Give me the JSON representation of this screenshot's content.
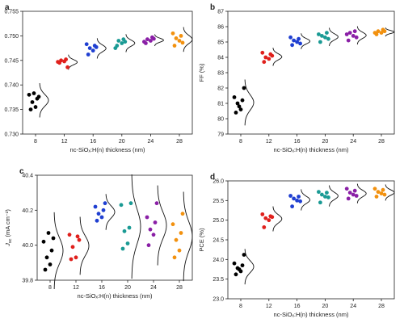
{
  "chart_data": [
    {
      "type": "scatter",
      "panel_label": "a",
      "xlabel": "nc-SiOₓ:H(n) thickness (nm)",
      "ylabel": "V",
      "ylabel_sub": "oc",
      "ylabel_unit": " (V)",
      "ylim": [
        0.73,
        0.755
      ],
      "yticks": [
        "0.730",
        "0.735",
        "0.740",
        "0.745",
        "0.750",
        "0.755"
      ],
      "categories": [
        "8",
        "12",
        "16",
        "20",
        "24",
        "28"
      ],
      "colors": [
        "#000000",
        "#e0201c",
        "#1f3fd1",
        "#1a9a94",
        "#8a1fa6",
        "#f2910f"
      ],
      "points": [
        [
          0.735,
          0.7355,
          0.7365,
          0.7372,
          0.738,
          0.7376,
          0.7383
        ],
        [
          0.7445,
          0.7448,
          0.745,
          0.7452,
          0.7447,
          0.7436
        ],
        [
          0.7462,
          0.747,
          0.7475,
          0.748,
          0.7483,
          0.7477
        ],
        [
          0.748,
          0.7485,
          0.749,
          0.7493,
          0.7475,
          0.7488
        ],
        [
          0.7485,
          0.749,
          0.7493,
          0.7497,
          0.7488,
          0.7494
        ],
        [
          0.748,
          0.749,
          0.7495,
          0.75,
          0.7505,
          0.7486
        ]
      ]
    },
    {
      "type": "scatter",
      "panel_label": "b",
      "xlabel": "nc-SiOₓ:H(n) thickness (nm)",
      "ylabel": "FF (%)",
      "ylabel_sub": "",
      "ylabel_unit": "",
      "ylim": [
        79,
        87
      ],
      "yticks": [
        "79",
        "80",
        "81",
        "82",
        "83",
        "84",
        "85",
        "86",
        "87"
      ],
      "categories": [
        "8",
        "12",
        "16",
        "20",
        "24",
        "28"
      ],
      "colors": [
        "#000000",
        "#e0201c",
        "#1f3fd1",
        "#1a9a94",
        "#8a1fa6",
        "#f2910f"
      ],
      "points": [
        [
          80.4,
          80.6,
          81.0,
          81.2,
          81.4,
          82.0,
          80.8
        ],
        [
          83.7,
          83.9,
          84.0,
          84.2,
          84.3,
          84.1
        ],
        [
          84.8,
          85.0,
          85.1,
          85.2,
          85.3,
          84.9
        ],
        [
          85.0,
          85.3,
          85.4,
          85.6,
          85.5,
          85.2
        ],
        [
          85.1,
          85.4,
          85.6,
          85.7,
          85.5,
          85.3
        ],
        [
          85.5,
          85.6,
          85.7,
          85.8,
          85.6,
          85.7
        ]
      ]
    },
    {
      "type": "scatter",
      "panel_label": "c",
      "xlabel": "nc-SiOₓ:H(n) thickness (nm)",
      "ylabel": "J",
      "ylabel_sub": "sc",
      "ylabel_unit": " (mA cm⁻²)",
      "ylim": [
        39.8,
        40.4
      ],
      "yticks": [
        "39.8",
        "40.0",
        "40.2",
        "40.4"
      ],
      "categories": [
        "8",
        "12",
        "16",
        "20",
        "24",
        "28"
      ],
      "colors": [
        "#000000",
        "#e0201c",
        "#1f3fd1",
        "#1a9a94",
        "#8a1fa6",
        "#f2910f"
      ],
      "points": [
        [
          39.86,
          39.89,
          39.93,
          39.97,
          40.02,
          40.04,
          40.07
        ],
        [
          39.92,
          39.93,
          39.99,
          40.05,
          40.06,
          40.03
        ],
        [
          40.14,
          40.16,
          40.18,
          40.2,
          40.22,
          40.24
        ],
        [
          39.98,
          40.01,
          40.08,
          40.1,
          40.23,
          40.24
        ],
        [
          40.0,
          40.06,
          40.09,
          40.13,
          40.16,
          40.24
        ],
        [
          39.93,
          39.97,
          40.03,
          40.07,
          40.12,
          40.18
        ]
      ]
    },
    {
      "type": "scatter",
      "panel_label": "d",
      "xlabel": "nc-SiOₓ:H(n) thickness (nm)",
      "ylabel": "PCE (%)",
      "ylabel_sub": "",
      "ylabel_unit": "",
      "ylim": [
        23.0,
        26.0
      ],
      "yticks": [
        "23.0",
        "23.5",
        "24.0",
        "24.5",
        "25.0",
        "25.5",
        "26.0"
      ],
      "categories": [
        "8",
        "12",
        "16",
        "20",
        "24",
        "28"
      ],
      "colors": [
        "#000000",
        "#e0201c",
        "#1f3fd1",
        "#1a9a94",
        "#8a1fa6",
        "#f2910f"
      ],
      "points": [
        [
          23.62,
          23.7,
          23.78,
          23.85,
          23.9,
          24.12,
          23.75
        ],
        [
          24.82,
          25.0,
          25.05,
          25.1,
          25.15,
          25.08
        ],
        [
          25.35,
          25.5,
          25.55,
          25.6,
          25.62,
          25.48
        ],
        [
          25.45,
          25.6,
          25.65,
          25.7,
          25.72,
          25.58
        ],
        [
          25.55,
          25.65,
          25.7,
          25.75,
          25.8,
          25.62
        ],
        [
          25.6,
          25.68,
          25.72,
          25.77,
          25.8,
          25.65
        ]
      ]
    }
  ]
}
